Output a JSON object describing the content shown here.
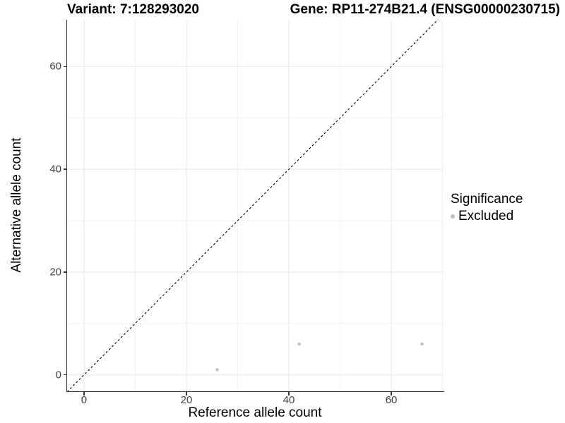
{
  "figure": {
    "title_left": "Variant: 7:128293020",
    "title_right": "Gene: RP11-274B21.4 (ENSG00000230715)"
  },
  "chart_data": {
    "type": "scatter",
    "title": "Variant: 7:128293020 — Gene: RP11-274B21.4 (ENSG00000230715)",
    "xlabel": "Reference allele count",
    "ylabel": "Alternative allele count",
    "x_ticks": [
      0,
      20,
      40,
      60
    ],
    "y_ticks": [
      0,
      20,
      40,
      60
    ],
    "x_minor_ticks": [
      10,
      30,
      50,
      70
    ],
    "y_minor_ticks": [
      10,
      30,
      50
    ],
    "xlim": [
      -3.3,
      70.2
    ],
    "ylim": [
      -3.2,
      69.1
    ],
    "grid": true,
    "reference_line": {
      "type": "identity",
      "slope": 1,
      "intercept": 0,
      "style": "dashed",
      "color": "#000000"
    },
    "series": [
      {
        "name": "Excluded",
        "color": "#bebebe",
        "points": [
          [
            26,
            1
          ],
          [
            42,
            6
          ],
          [
            66,
            6
          ]
        ]
      }
    ],
    "legend": {
      "title": "Significance",
      "position": "right",
      "entries": [
        {
          "label": "Excluded",
          "color": "#bebebe"
        }
      ]
    }
  },
  "colors": {
    "background": "#ffffff",
    "grid_major": "#ebebeb",
    "grid_minor": "#f2f2f2",
    "axis": "#333333",
    "tick_text": "#404040",
    "point": "#bebebe"
  }
}
